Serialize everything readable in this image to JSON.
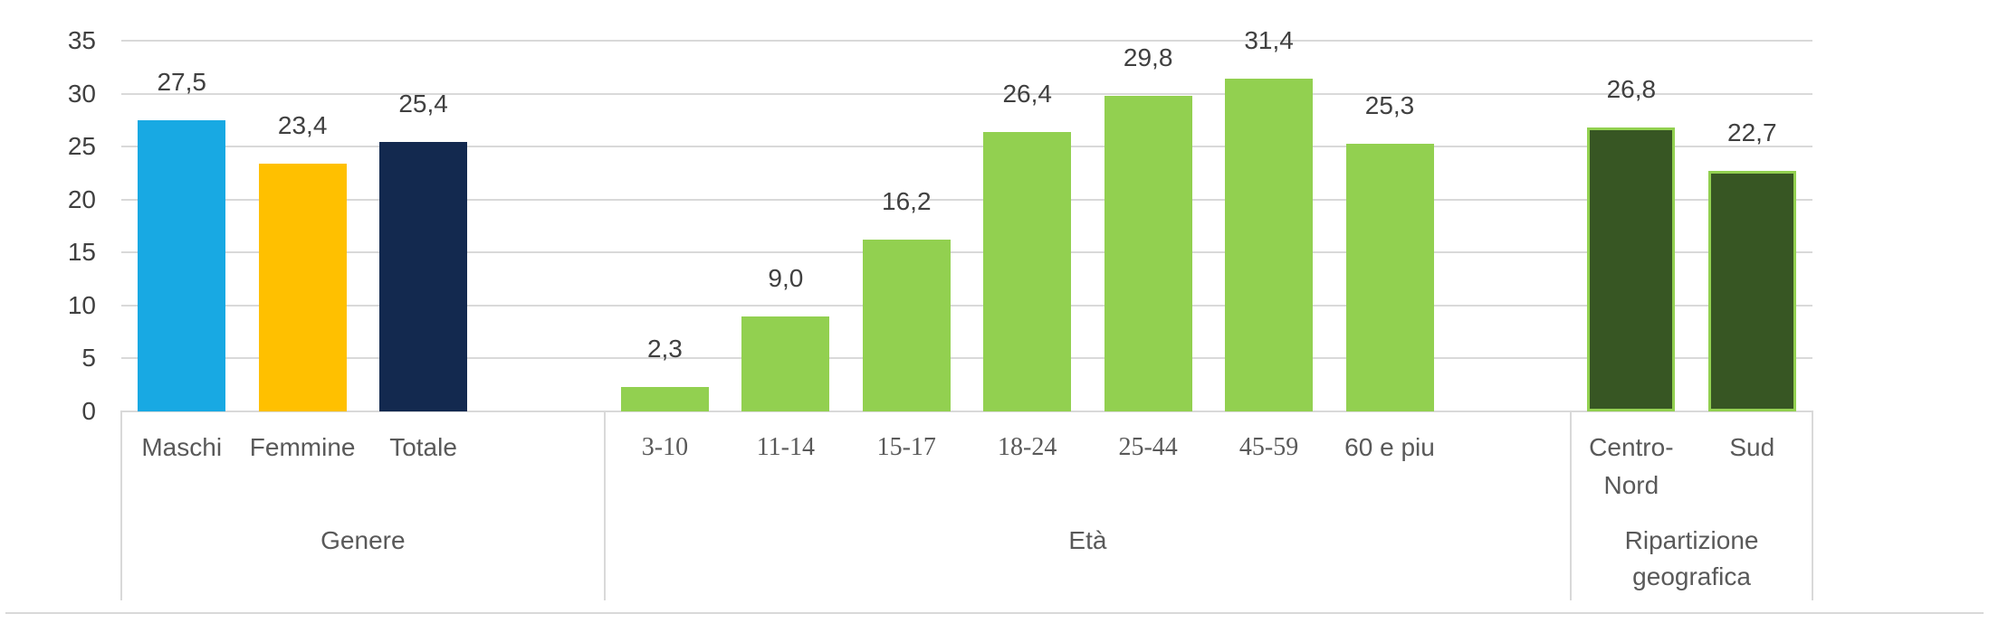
{
  "chart_data": {
    "type": "bar",
    "title": "",
    "value_axis": {
      "min": 0,
      "max": 35,
      "step": 5,
      "tick_labels": [
        "0",
        "5",
        "10",
        "15",
        "20",
        "25",
        "30",
        "35"
      ]
    },
    "grid": "horizontal",
    "legend": "none",
    "decimal_separator": ",",
    "groups": [
      {
        "label": "Genere",
        "bars": [
          {
            "category": "Maschi",
            "value": 27.5,
            "value_label": "27,5",
            "fill": "#18A9E3",
            "serif_category": false
          },
          {
            "category": "Femmine",
            "value": 23.4,
            "value_label": "23,4",
            "fill": "#FFC000",
            "serif_category": false
          },
          {
            "category": "Totale",
            "value": 25.4,
            "value_label": "25,4",
            "fill": "#13294F",
            "serif_category": false
          }
        ]
      },
      {
        "label": "Età",
        "bars": [
          {
            "category": "3-10",
            "value": 2.3,
            "value_label": "2,3",
            "fill": "#92D050",
            "serif_category": true
          },
          {
            "category": "11-14",
            "value": 9.0,
            "value_label": "9,0",
            "fill": "#92D050",
            "serif_category": true
          },
          {
            "category": "15-17",
            "value": 16.2,
            "value_label": "16,2",
            "fill": "#92D050",
            "serif_category": true
          },
          {
            "category": "18-24",
            "value": 26.4,
            "value_label": "26,4",
            "fill": "#92D050",
            "serif_category": true
          },
          {
            "category": "25-44",
            "value": 29.8,
            "value_label": "29,8",
            "fill": "#92D050",
            "serif_category": true
          },
          {
            "category": "45-59",
            "value": 31.4,
            "value_label": "31,4",
            "fill": "#92D050",
            "serif_category": true
          },
          {
            "category": "60 e piu",
            "value": 25.3,
            "value_label": "25,3",
            "fill": "#92D050",
            "serif_category": false
          }
        ]
      },
      {
        "label": "Ripartizione geografica",
        "bars": [
          {
            "category": "Centro-Nord",
            "value": 26.8,
            "value_label": "26,8",
            "fill": "#375623",
            "stroke": "#92D050",
            "serif_category": false
          },
          {
            "category": "Sud",
            "value": 22.7,
            "value_label": "22,7",
            "fill": "#375623",
            "stroke": "#92D050",
            "serif_category": false
          }
        ]
      }
    ],
    "colors": {
      "gridline": "#D9D9D9",
      "axis_text": "#404040",
      "category_text": "#595959"
    }
  }
}
